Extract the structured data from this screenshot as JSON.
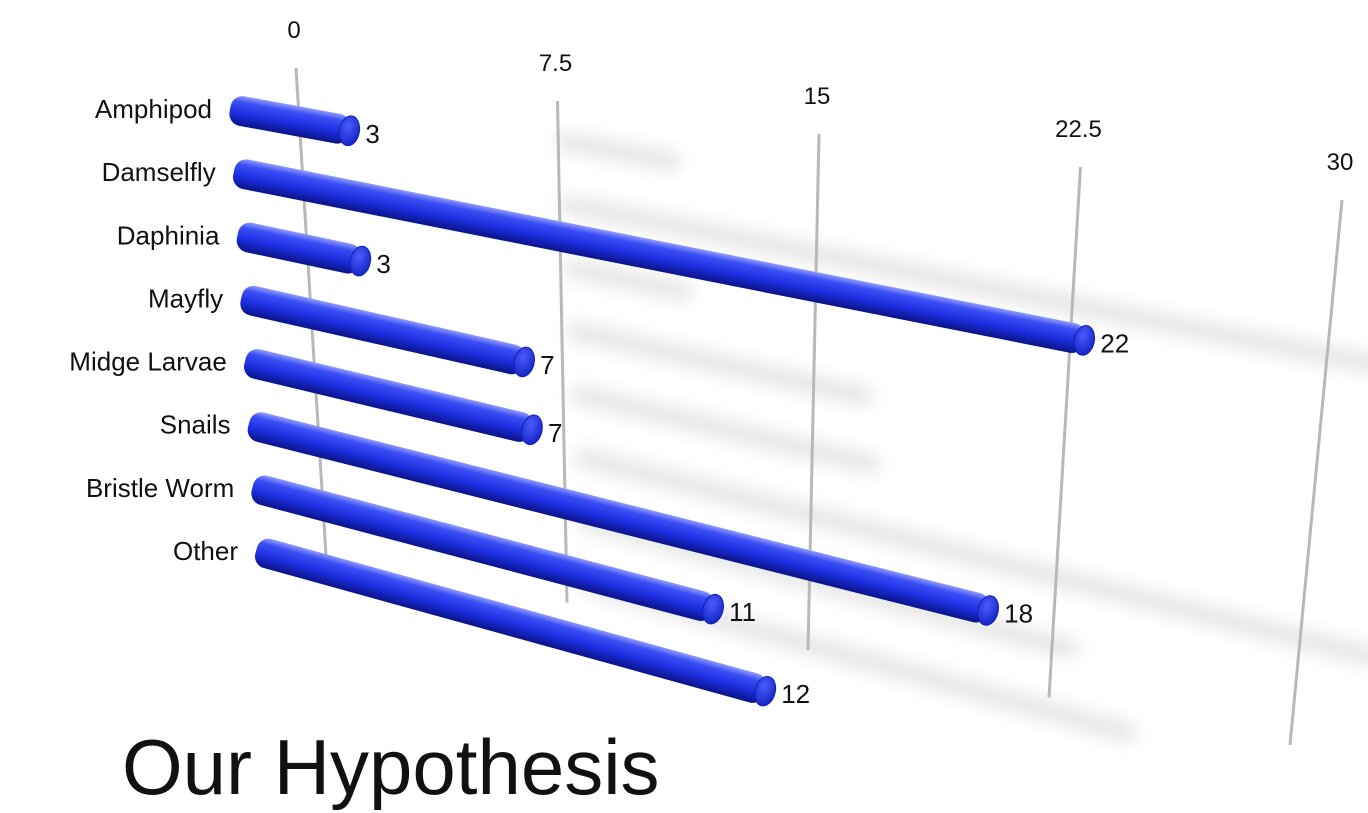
{
  "slide": {
    "title": "Our Hypothesis"
  },
  "chart_data": {
    "type": "bar",
    "orientation": "horizontal",
    "style": "3d-perspective-cylinders",
    "categories": [
      "Amphipod",
      "Damselfly",
      "Daphinia",
      "Mayfly",
      "Midge Larvae",
      "Snails",
      "Bristle Worm",
      "Other"
    ],
    "values": [
      3,
      22,
      3,
      7,
      7,
      18,
      11,
      12
    ],
    "xlim": [
      0,
      30
    ],
    "ticks": [
      "0",
      "7.5",
      "15",
      "22.5",
      "30"
    ],
    "grid": true,
    "legend": "none",
    "bar_color": "#1e2fe0"
  }
}
